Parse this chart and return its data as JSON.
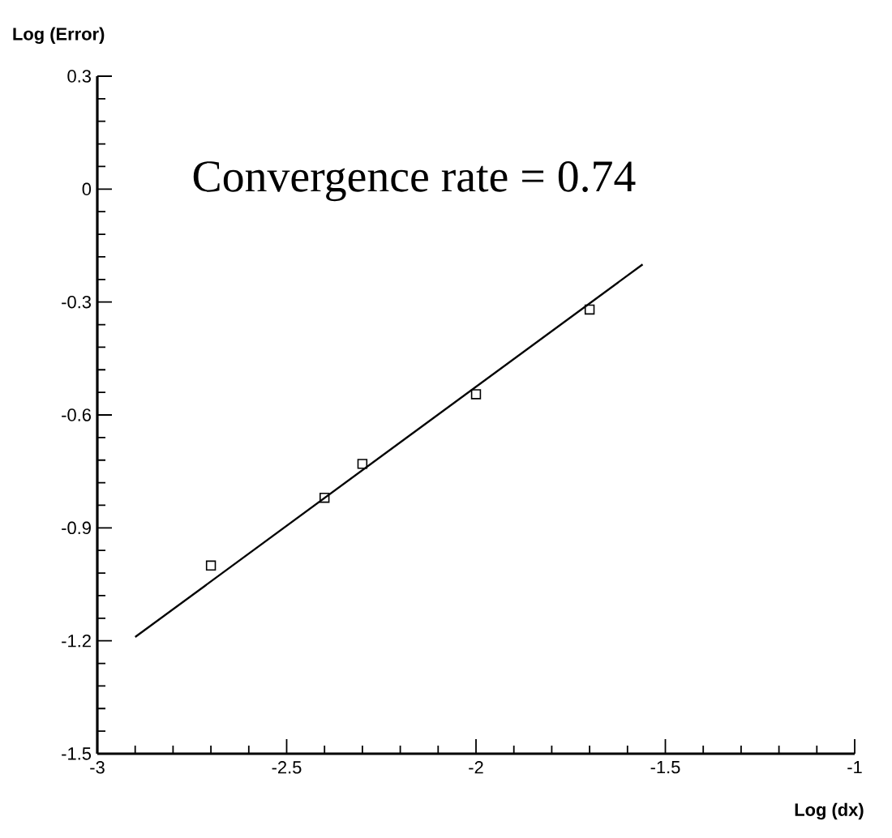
{
  "chart_data": {
    "type": "scatter",
    "xlabel": "Log (dx)",
    "ylabel": "Log (Error)",
    "annotations": [
      "Convergence rate = 0.74"
    ],
    "xlim": [
      -3,
      -1
    ],
    "ylim": [
      -1.5,
      0.3
    ],
    "xticks": [
      -3,
      -2.5,
      -2,
      -1.5,
      -1
    ],
    "yticks": [
      -1.5,
      -1.2,
      -0.9,
      -0.6,
      -0.3,
      0,
      0.3
    ],
    "grid": false,
    "legend": false,
    "series": [
      {
        "marker": "square",
        "color": "#000000",
        "x": [
          -2.7,
          -2.4,
          -2.3,
          -2.0,
          -1.7
        ],
        "values": [
          -1.0,
          -0.82,
          -0.73,
          -0.545,
          -0.32
        ]
      },
      {
        "type": "line",
        "marker": "none",
        "line_style": "solid",
        "color": "#000000",
        "x": [
          -2.9,
          -1.56
        ],
        "values": [
          -1.19,
          -0.2
        ]
      }
    ]
  }
}
